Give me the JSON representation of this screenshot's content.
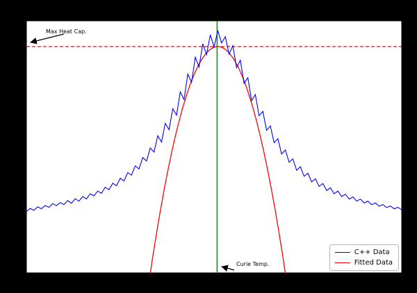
{
  "figure": {
    "background": "#000000",
    "plot_background": "#ffffff",
    "frame_color": "#000000"
  },
  "annotations": {
    "max_heat_cap": {
      "label": "Max Heat Cap."
    },
    "curie_temp": {
      "label": "Curie Temp."
    }
  },
  "legend": {
    "position": "lower right",
    "items": [
      {
        "label": "C++ Data",
        "color": "#0000ff"
      },
      {
        "label": "Fitted Data",
        "color": "#ff0000"
      }
    ]
  },
  "chart_data": {
    "type": "line",
    "title": "",
    "xlabel": "",
    "ylabel": "",
    "xlim": [
      1.0,
      3.5
    ],
    "ylim": [
      0,
      2.25
    ],
    "grid": false,
    "legend_position": "lower right",
    "series": [
      {
        "name": "C++ Data",
        "color": "#0000ff",
        "style": "solid",
        "x_start": 1.0,
        "x_step": 0.025,
        "values": [
          0.548,
          0.575,
          0.558,
          0.59,
          0.572,
          0.601,
          0.585,
          0.618,
          0.6,
          0.628,
          0.61,
          0.645,
          0.622,
          0.662,
          0.64,
          0.682,
          0.66,
          0.706,
          0.688,
          0.73,
          0.71,
          0.765,
          0.742,
          0.8,
          0.778,
          0.845,
          0.82,
          0.895,
          0.872,
          0.955,
          0.928,
          1.03,
          0.998,
          1.115,
          1.078,
          1.225,
          1.168,
          1.335,
          1.278,
          1.465,
          1.408,
          1.615,
          1.548,
          1.775,
          1.7,
          1.925,
          1.838,
          2.045,
          1.948,
          2.125,
          2.018,
          2.16,
          2.052,
          2.108,
          1.952,
          2.028,
          1.832,
          1.898,
          1.692,
          1.742,
          1.538,
          1.592,
          1.402,
          1.442,
          1.272,
          1.312,
          1.162,
          1.198,
          1.062,
          1.098,
          0.988,
          1.018,
          0.915,
          0.948,
          0.862,
          0.89,
          0.812,
          0.84,
          0.772,
          0.798,
          0.735,
          0.76,
          0.706,
          0.73,
          0.682,
          0.702,
          0.658,
          0.678,
          0.64,
          0.658,
          0.624,
          0.64,
          0.608,
          0.624,
          0.595,
          0.61,
          0.583,
          0.597,
          0.572,
          0.585,
          0.562
        ]
      },
      {
        "name": "Fitted Data",
        "color": "#ff0000",
        "style": "solid",
        "fit": {
          "shape": "quadratic",
          "peak_value": 2.02,
          "peak_x": 2.275,
          "coefficient": -10.0
        }
      }
    ],
    "reference_lines": [
      {
        "name": "max-heat-cap-line",
        "orientation": "horizontal",
        "value": 2.02,
        "color": "#ff0000",
        "style": "dashed"
      },
      {
        "name": "curie-temp-line",
        "orientation": "vertical",
        "value": 2.27,
        "color": "#008000",
        "style": "solid"
      }
    ]
  }
}
